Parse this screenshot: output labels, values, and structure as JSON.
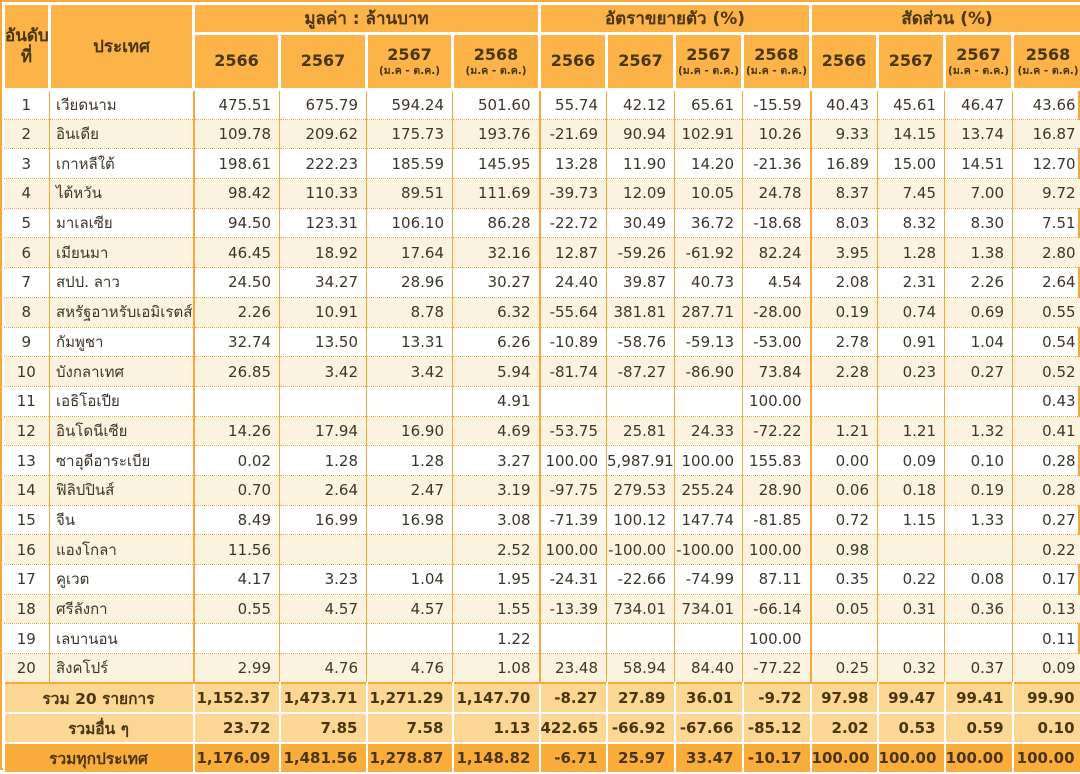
{
  "table": {
    "header": {
      "rank_label": "อันดับ\nที่",
      "country_label": "ประเทศ",
      "groups": [
        {
          "label": "มูลค่า : ล้านบาท"
        },
        {
          "label": "อัตราขยายตัว (%)"
        },
        {
          "label": "สัดส่วน (%)"
        }
      ],
      "year_columns": [
        {
          "label": "2566",
          "sublabel": ""
        },
        {
          "label": "2567",
          "sublabel": ""
        },
        {
          "label": "2567",
          "sublabel": "(ม.ค - ต.ค.)"
        },
        {
          "label": "2568",
          "sublabel": "(ม.ค - ต.ค.)"
        }
      ]
    },
    "rows": [
      {
        "rank": "1",
        "country": "เวียดนาม",
        "values": [
          "475.51",
          "675.79",
          "594.24",
          "501.60"
        ],
        "growth": [
          "55.74",
          "42.12",
          "65.61",
          "-15.59"
        ],
        "share": [
          "40.43",
          "45.61",
          "46.47",
          "43.66"
        ]
      },
      {
        "rank": "2",
        "country": "อินเดีย",
        "values": [
          "109.78",
          "209.62",
          "175.73",
          "193.76"
        ],
        "growth": [
          "-21.69",
          "90.94",
          "102.91",
          "10.26"
        ],
        "share": [
          "9.33",
          "14.15",
          "13.74",
          "16.87"
        ]
      },
      {
        "rank": "3",
        "country": "เกาหลีใต้",
        "values": [
          "198.61",
          "222.23",
          "185.59",
          "145.95"
        ],
        "growth": [
          "13.28",
          "11.90",
          "14.20",
          "-21.36"
        ],
        "share": [
          "16.89",
          "15.00",
          "14.51",
          "12.70"
        ]
      },
      {
        "rank": "4",
        "country": "ไต้หวัน",
        "values": [
          "98.42",
          "110.33",
          "89.51",
          "111.69"
        ],
        "growth": [
          "-39.73",
          "12.09",
          "10.05",
          "24.78"
        ],
        "share": [
          "8.37",
          "7.45",
          "7.00",
          "9.72"
        ]
      },
      {
        "rank": "5",
        "country": "มาเลเซีย",
        "values": [
          "94.50",
          "123.31",
          "106.10",
          "86.28"
        ],
        "growth": [
          "-22.72",
          "30.49",
          "36.72",
          "-18.68"
        ],
        "share": [
          "8.03",
          "8.32",
          "8.30",
          "7.51"
        ]
      },
      {
        "rank": "6",
        "country": "เมียนมา",
        "values": [
          "46.45",
          "18.92",
          "17.64",
          "32.16"
        ],
        "growth": [
          "12.87",
          "-59.26",
          "-61.92",
          "82.24"
        ],
        "share": [
          "3.95",
          "1.28",
          "1.38",
          "2.80"
        ]
      },
      {
        "rank": "7",
        "country": "สปป. ลาว",
        "values": [
          "24.50",
          "34.27",
          "28.96",
          "30.27"
        ],
        "growth": [
          "24.40",
          "39.87",
          "40.73",
          "4.54"
        ],
        "share": [
          "2.08",
          "2.31",
          "2.26",
          "2.64"
        ]
      },
      {
        "rank": "8",
        "country": "สหรัฐอาหรับเอมิเรตส์",
        "values": [
          "2.26",
          "10.91",
          "8.78",
          "6.32"
        ],
        "growth": [
          "-55.64",
          "381.81",
          "287.71",
          "-28.00"
        ],
        "share": [
          "0.19",
          "0.74",
          "0.69",
          "0.55"
        ]
      },
      {
        "rank": "9",
        "country": "กัมพูชา",
        "values": [
          "32.74",
          "13.50",
          "13.31",
          "6.26"
        ],
        "growth": [
          "-10.89",
          "-58.76",
          "-59.13",
          "-53.00"
        ],
        "share": [
          "2.78",
          "0.91",
          "1.04",
          "0.54"
        ]
      },
      {
        "rank": "10",
        "country": "บังกลาเทศ",
        "values": [
          "26.85",
          "3.42",
          "3.42",
          "5.94"
        ],
        "growth": [
          "-81.74",
          "-87.27",
          "-86.90",
          "73.84"
        ],
        "share": [
          "2.28",
          "0.23",
          "0.27",
          "0.52"
        ]
      },
      {
        "rank": "11",
        "country": "เอธิโอเปีย",
        "values": [
          "",
          "",
          "",
          "4.91"
        ],
        "growth": [
          "",
          "",
          "",
          "100.00"
        ],
        "share": [
          "",
          "",
          "",
          "0.43"
        ]
      },
      {
        "rank": "12",
        "country": "อินโดนีเซีย",
        "values": [
          "14.26",
          "17.94",
          "16.90",
          "4.69"
        ],
        "growth": [
          "-53.75",
          "25.81",
          "24.33",
          "-72.22"
        ],
        "share": [
          "1.21",
          "1.21",
          "1.32",
          "0.41"
        ]
      },
      {
        "rank": "13",
        "country": "ซาอุดีอาระเบีย",
        "values": [
          "0.02",
          "1.28",
          "1.28",
          "3.27"
        ],
        "growth": [
          "100.00",
          "5,987.91",
          "100.00",
          "155.83"
        ],
        "share": [
          "0.00",
          "0.09",
          "0.10",
          "0.28"
        ]
      },
      {
        "rank": "14",
        "country": "ฟิลิปปินส์",
        "values": [
          "0.70",
          "2.64",
          "2.47",
          "3.19"
        ],
        "growth": [
          "-97.75",
          "279.53",
          "255.24",
          "28.90"
        ],
        "share": [
          "0.06",
          "0.18",
          "0.19",
          "0.28"
        ]
      },
      {
        "rank": "15",
        "country": "จีน",
        "values": [
          "8.49",
          "16.99",
          "16.98",
          "3.08"
        ],
        "growth": [
          "-71.39",
          "100.12",
          "147.74",
          "-81.85"
        ],
        "share": [
          "0.72",
          "1.15",
          "1.33",
          "0.27"
        ]
      },
      {
        "rank": "16",
        "country": "แองโกลา",
        "values": [
          "11.56",
          "",
          "",
          "2.52"
        ],
        "growth": [
          "100.00",
          "-100.00",
          "-100.00",
          "100.00"
        ],
        "share": [
          "0.98",
          "",
          "",
          "0.22"
        ]
      },
      {
        "rank": "17",
        "country": "คูเวต",
        "values": [
          "4.17",
          "3.23",
          "1.04",
          "1.95"
        ],
        "growth": [
          "-24.31",
          "-22.66",
          "-74.99",
          "87.11"
        ],
        "share": [
          "0.35",
          "0.22",
          "0.08",
          "0.17"
        ]
      },
      {
        "rank": "18",
        "country": "ศรีลังกา",
        "values": [
          "0.55",
          "4.57",
          "4.57",
          "1.55"
        ],
        "growth": [
          "-13.39",
          "734.01",
          "734.01",
          "-66.14"
        ],
        "share": [
          "0.05",
          "0.31",
          "0.36",
          "0.13"
        ]
      },
      {
        "rank": "19",
        "country": "เลบานอน",
        "values": [
          "",
          "",
          "",
          "1.22"
        ],
        "growth": [
          "",
          "",
          "",
          "100.00"
        ],
        "share": [
          "",
          "",
          "",
          "0.11"
        ]
      },
      {
        "rank": "20",
        "country": "สิงคโปร์",
        "values": [
          "2.99",
          "4.76",
          "4.76",
          "1.08"
        ],
        "growth": [
          "23.48",
          "58.94",
          "84.40",
          "-77.22"
        ],
        "share": [
          "0.25",
          "0.32",
          "0.37",
          "0.09"
        ]
      }
    ],
    "footer_rows": [
      {
        "label": "รวม 20 รายการ",
        "emphasis": "light",
        "values": [
          "1,152.37",
          "1,473.71",
          "1,271.29",
          "1,147.70"
        ],
        "growth": [
          "-8.27",
          "27.89",
          "36.01",
          "-9.72"
        ],
        "share": [
          "97.98",
          "99.47",
          "99.41",
          "99.90"
        ]
      },
      {
        "label": "รวมอื่น ๆ",
        "emphasis": "light",
        "values": [
          "23.72",
          "7.85",
          "7.58",
          "1.13"
        ],
        "growth": [
          "422.65",
          "-66.92",
          "-67.66",
          "-85.12"
        ],
        "share": [
          "2.02",
          "0.53",
          "0.59",
          "0.10"
        ]
      },
      {
        "label": "รวมทุกประเทศ",
        "emphasis": "dark",
        "values": [
          "1,176.09",
          "1,481.56",
          "1,278.87",
          "1,148.82"
        ],
        "growth": [
          "-6.71",
          "25.97",
          "33.47",
          "-10.17"
        ],
        "share": [
          "100.00",
          "100.00",
          "100.00",
          "100.00"
        ]
      }
    ]
  },
  "colors": {
    "header_bg": "#FCB347",
    "header_text": "#4A3513",
    "row_alt_bg": "#FBF3DD",
    "grid_orange": "#F5A93C",
    "footer_light_bg": "#FCD794",
    "footer_dark_bg": "#FBAD3C",
    "text_dark": "#3E362A"
  }
}
